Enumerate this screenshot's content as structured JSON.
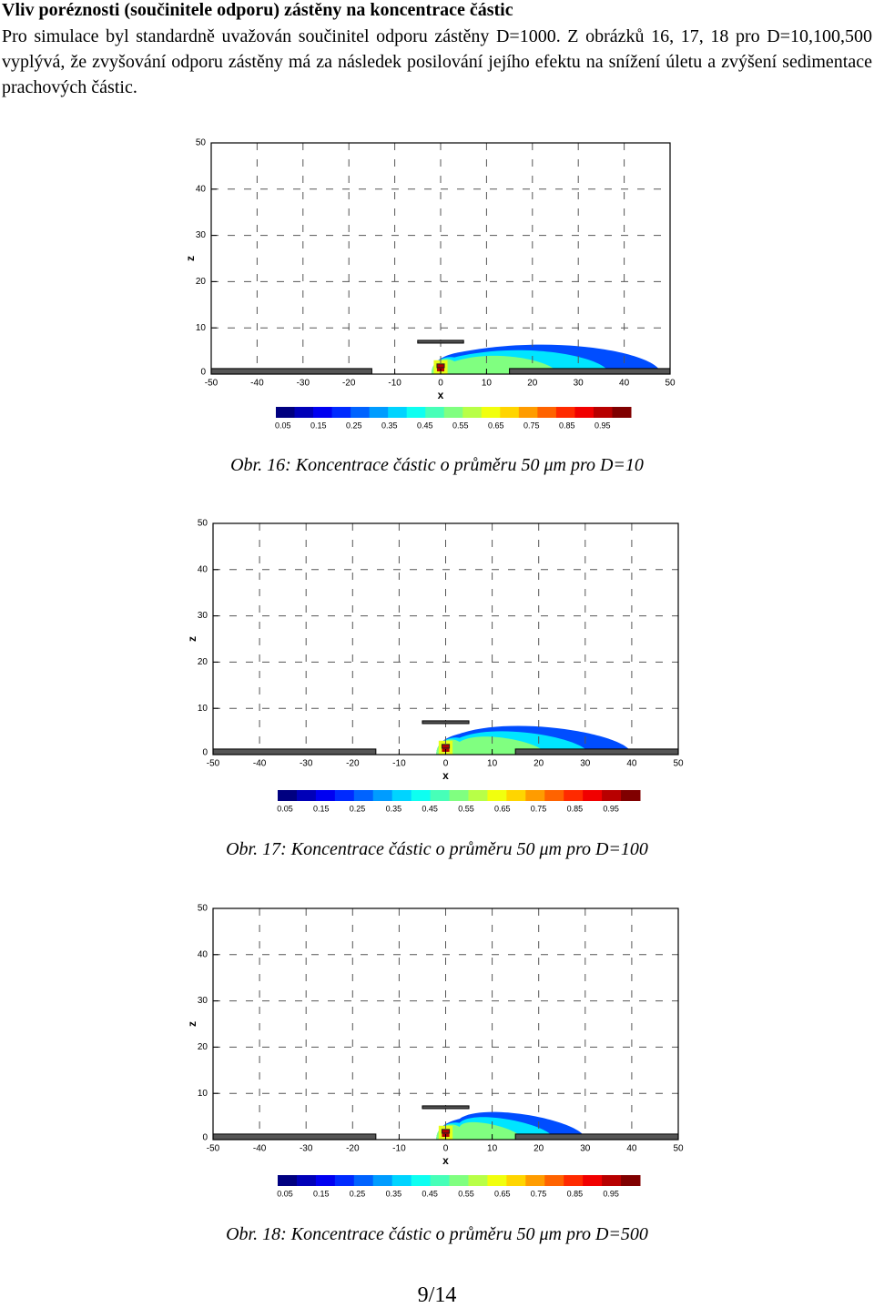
{
  "heading": "Vliv poréznosti (součinitele odporu) zástěny na koncentrace částic",
  "paragraph": "Pro simulace byl standardně uvažován součinitel odporu zástěny D=1000. Z obrázků 16, 17, 18 pro D=10,100,500 vyplývá, že zvyšování odporu zástěny má za následek posilování jejího efektu na snížení úletu a zvýšení sedimentace prachových částic.",
  "figures": [
    {
      "xlabel": "x",
      "ylabel": "z",
      "xlim": [
        -50,
        50
      ],
      "ylim": [
        0,
        50
      ],
      "xticks": [
        -50,
        -40,
        -30,
        -20,
        -10,
        0,
        10,
        20,
        30,
        40,
        50
      ],
      "yticks": [
        0,
        10,
        20,
        30,
        40,
        50
      ],
      "colorbar_ticks": [
        0.05,
        0.15,
        0.25,
        0.35,
        0.45,
        0.55,
        0.65,
        0.75,
        0.85,
        0.95
      ],
      "caption": "Obr. 16: Koncentrace částic o průměru 50 μm pro D=10"
    },
    {
      "xlabel": "x",
      "ylabel": "z",
      "xlim": [
        -50,
        50
      ],
      "ylim": [
        0,
        50
      ],
      "xticks": [
        -50,
        -40,
        -30,
        -20,
        -10,
        0,
        10,
        20,
        30,
        40,
        50
      ],
      "yticks": [
        0,
        10,
        20,
        30,
        40,
        50
      ],
      "colorbar_ticks": [
        0.05,
        0.15,
        0.25,
        0.35,
        0.45,
        0.55,
        0.65,
        0.75,
        0.85,
        0.95
      ],
      "caption": "Obr. 17: Koncentrace částic o průměru 50 μm pro D=100"
    },
    {
      "xlabel": "x",
      "ylabel": "z",
      "xlim": [
        -50,
        50
      ],
      "ylim": [
        0,
        50
      ],
      "xticks": [
        -50,
        -40,
        -30,
        -20,
        -10,
        0,
        10,
        20,
        30,
        40,
        50
      ],
      "yticks": [
        0,
        10,
        20,
        30,
        40,
        50
      ],
      "colorbar_ticks": [
        0.05,
        0.15,
        0.25,
        0.35,
        0.45,
        0.55,
        0.65,
        0.75,
        0.85,
        0.95
      ],
      "caption": "Obr. 18: Koncentrace částic o průměru 50 μm pro D=500"
    }
  ],
  "page_number": "9/14"
}
